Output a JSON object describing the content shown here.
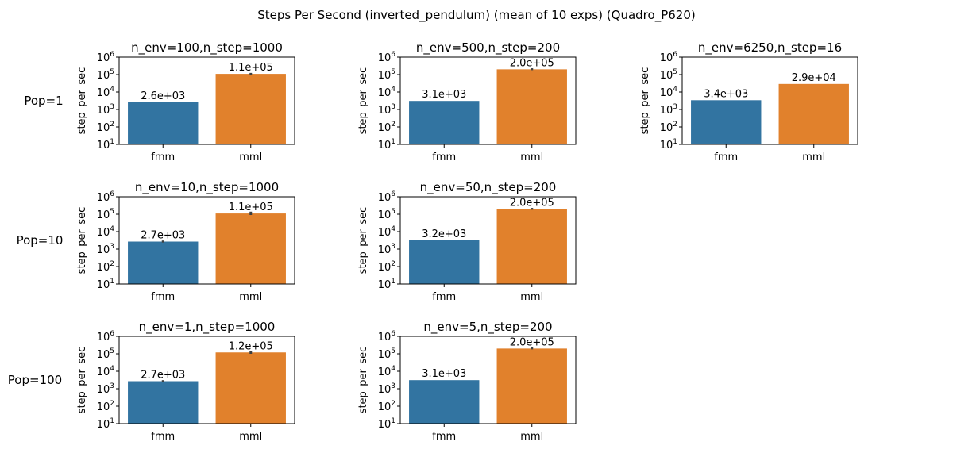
{
  "suptitle": "Steps Per Second (inverted_pendulum) (mean of 10 exps) (Quadro_P620)",
  "row_labels": [
    "Pop=1",
    "Pop=10",
    "Pop=100"
  ],
  "colors": {
    "fmm": "#3274a1",
    "mml": "#e1812c",
    "errorbar": "#3f3f3f",
    "axes": "#000000"
  },
  "chart_data": [
    {
      "type": "bar",
      "row": 0,
      "col": 0,
      "title": "n_env=100,n_step=1000",
      "categories": [
        "fmm",
        "mml"
      ],
      "values": [
        2600,
        110000
      ],
      "value_labels": [
        "2.6e+03",
        "1.1e+05"
      ],
      "error_low": [
        null,
        100000
      ],
      "error_high": [
        null,
        125000
      ],
      "xlabel": "",
      "ylabel": "step_per_sec",
      "yscale": "log",
      "ylim": [
        10,
        1000000
      ]
    },
    {
      "type": "bar",
      "row": 0,
      "col": 1,
      "title": "n_env=500,n_step=200",
      "categories": [
        "fmm",
        "mml"
      ],
      "values": [
        3100,
        200000
      ],
      "value_labels": [
        "3.1e+03",
        "2.0e+05"
      ],
      "error_low": [
        null,
        180000
      ],
      "error_high": [
        null,
        230000
      ],
      "xlabel": "",
      "ylabel": "step_per_sec",
      "yscale": "log",
      "ylim": [
        10,
        1000000
      ]
    },
    {
      "type": "bar",
      "row": 0,
      "col": 2,
      "title": "n_env=6250,n_step=16",
      "categories": [
        "fmm",
        "mml"
      ],
      "values": [
        3400,
        29000
      ],
      "value_labels": [
        "3.4e+03",
        "2.9e+04"
      ],
      "error_low": [
        null,
        null
      ],
      "error_high": [
        null,
        null
      ],
      "xlabel": "",
      "ylabel": "step_per_sec",
      "yscale": "log",
      "ylim": [
        10,
        1000000
      ]
    },
    {
      "type": "bar",
      "row": 1,
      "col": 0,
      "title": "n_env=10,n_step=1000",
      "categories": [
        "fmm",
        "mml"
      ],
      "values": [
        2700,
        110000
      ],
      "value_labels": [
        "2.7e+03",
        "1.1e+05"
      ],
      "error_low": [
        2400,
        90000
      ],
      "error_high": [
        3100,
        140000
      ],
      "xlabel": "",
      "ylabel": "step_per_sec",
      "yscale": "log",
      "ylim": [
        10,
        1000000
      ]
    },
    {
      "type": "bar",
      "row": 1,
      "col": 1,
      "title": "n_env=50,n_step=200",
      "categories": [
        "fmm",
        "mml"
      ],
      "values": [
        3200,
        200000
      ],
      "value_labels": [
        "3.2e+03",
        "2.0e+05"
      ],
      "error_low": [
        null,
        180000
      ],
      "error_high": [
        null,
        230000
      ],
      "xlabel": "",
      "ylabel": "step_per_sec",
      "yscale": "log",
      "ylim": [
        10,
        1000000
      ]
    },
    {
      "type": "bar",
      "row": 2,
      "col": 0,
      "title": "n_env=1,n_step=1000",
      "categories": [
        "fmm",
        "mml"
      ],
      "values": [
        2700,
        120000
      ],
      "value_labels": [
        "2.7e+03",
        "1.2e+05"
      ],
      "error_low": [
        2400,
        100000
      ],
      "error_high": [
        3100,
        145000
      ],
      "xlabel": "",
      "ylabel": "step_per_sec",
      "yscale": "log",
      "ylim": [
        10,
        1000000
      ]
    },
    {
      "type": "bar",
      "row": 2,
      "col": 1,
      "title": "n_env=5,n_step=200",
      "categories": [
        "fmm",
        "mml"
      ],
      "values": [
        3100,
        200000
      ],
      "value_labels": [
        "3.1e+03",
        "2.0e+05"
      ],
      "error_low": [
        null,
        180000
      ],
      "error_high": [
        null,
        235000
      ],
      "xlabel": "",
      "ylabel": "step_per_sec",
      "yscale": "log",
      "ylim": [
        10,
        1000000
      ]
    }
  ]
}
